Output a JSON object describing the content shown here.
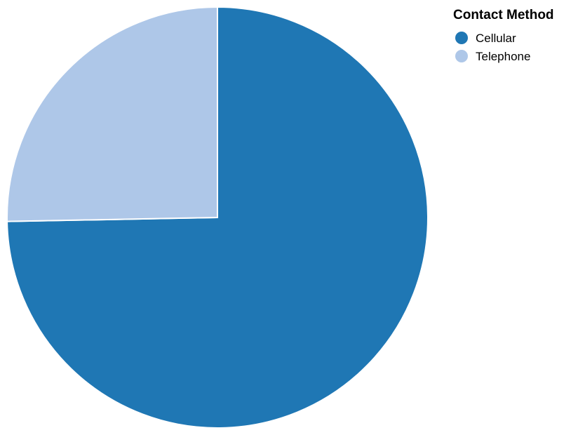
{
  "chart_data": {
    "type": "pie",
    "categories": [
      "Cellular",
      "Telephone"
    ],
    "values": [
      74.7,
      25.3
    ],
    "colors": [
      "#1f77b4",
      "#aec7e8"
    ],
    "start_angle_deg": 0,
    "direction": "clockwise",
    "legend": {
      "title": "Contact Method",
      "placement": "top-right",
      "entries": [
        {
          "label": "Cellular",
          "color": "#1f77b4"
        },
        {
          "label": "Telephone",
          "color": "#aec7e8"
        }
      ]
    }
  }
}
